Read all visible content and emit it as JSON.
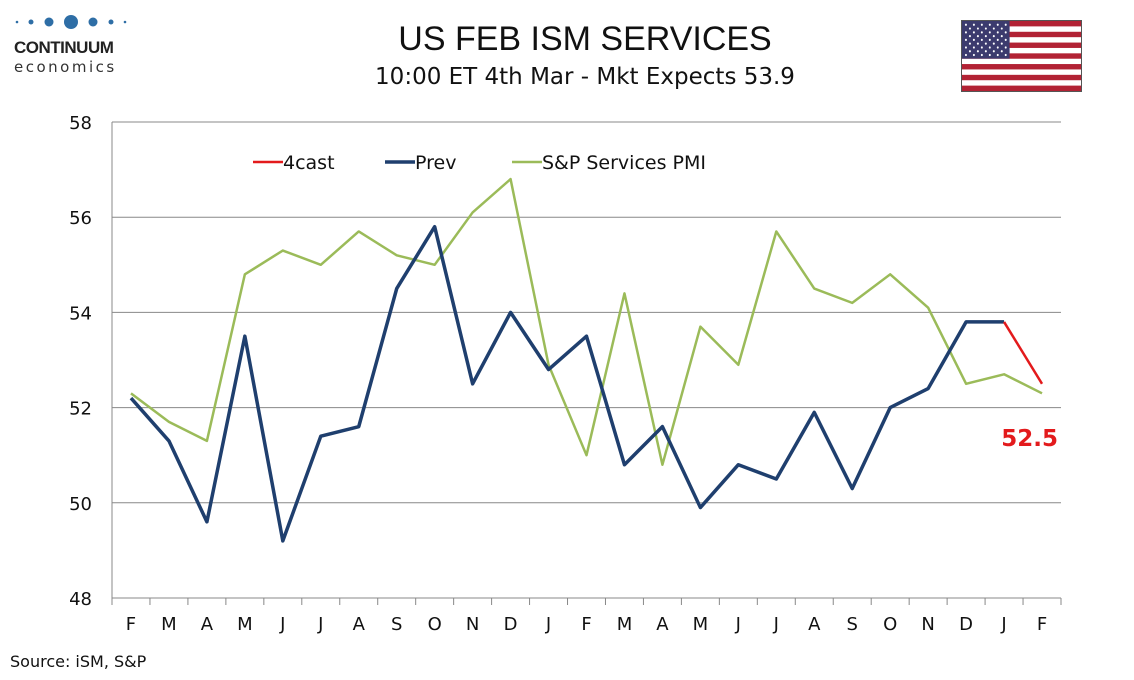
{
  "logo": {
    "name": "CONTINUUM",
    "sub": "economics"
  },
  "source": "Source: iSM, S&P",
  "chart_data": {
    "type": "line",
    "title": "US FEB ISM SERVICES",
    "subtitle": "10:00 ET 4th Mar - Mkt Expects 53.9",
    "categories": [
      "F",
      "M",
      "A",
      "M",
      "J",
      "J",
      "A",
      "S",
      "O",
      "N",
      "D",
      "J",
      "F",
      "M",
      "A",
      "M",
      "J",
      "J",
      "A",
      "S",
      "O",
      "N",
      "D",
      "J",
      "F"
    ],
    "ylim": [
      48,
      58
    ],
    "yticks": [
      48,
      50,
      52,
      54,
      56,
      58
    ],
    "grid": true,
    "legend_position": "top-left",
    "series": [
      {
        "name": "4cast",
        "color": "#e31a1c",
        "values": [
          null,
          null,
          null,
          null,
          null,
          null,
          null,
          null,
          null,
          null,
          null,
          null,
          null,
          null,
          null,
          null,
          null,
          null,
          null,
          null,
          null,
          null,
          null,
          53.8,
          52.5
        ]
      },
      {
        "name": "Prev",
        "color": "#1f3f6e",
        "values": [
          52.2,
          51.3,
          49.6,
          53.5,
          49.2,
          51.4,
          51.6,
          54.5,
          55.8,
          52.5,
          54.0,
          52.8,
          53.5,
          50.8,
          51.6,
          49.9,
          50.8,
          50.5,
          51.9,
          50.3,
          52.0,
          52.4,
          53.8,
          53.8,
          null
        ]
      },
      {
        "name": "S&P Services PMI",
        "color": "#9bbb59",
        "values": [
          52.3,
          51.7,
          51.3,
          54.8,
          55.3,
          55.0,
          55.7,
          55.2,
          55.0,
          56.1,
          56.8,
          52.9,
          51.0,
          54.4,
          50.8,
          53.7,
          52.9,
          55.7,
          54.5,
          54.2,
          54.8,
          54.1,
          52.5,
          52.7,
          52.3
        ]
      }
    ],
    "annotation": {
      "text": "52.5",
      "color": "#e31a1c"
    }
  }
}
